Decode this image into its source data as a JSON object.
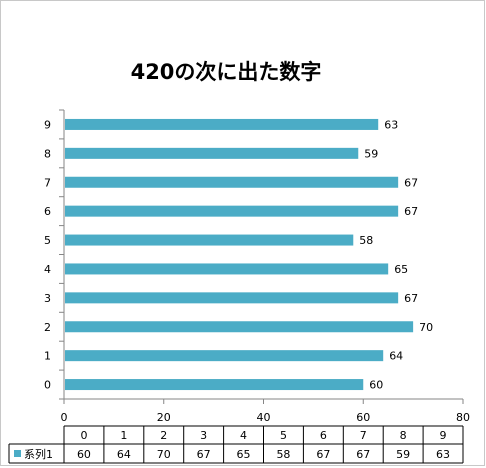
{
  "chart_data": {
    "type": "bar",
    "orientation": "horizontal",
    "title": "420の次に出た数字",
    "categories": [
      "0",
      "1",
      "2",
      "3",
      "4",
      "5",
      "6",
      "7",
      "8",
      "9"
    ],
    "series": [
      {
        "name": "系列1",
        "values": [
          60,
          64,
          70,
          67,
          65,
          58,
          67,
          67,
          59,
          63
        ],
        "color": "#4bacc6"
      }
    ],
    "xlim": [
      0,
      80
    ],
    "x_ticks": [
      0,
      20,
      40,
      60,
      80
    ],
    "grid": false,
    "legend": "data-table-left",
    "data_table": true
  }
}
